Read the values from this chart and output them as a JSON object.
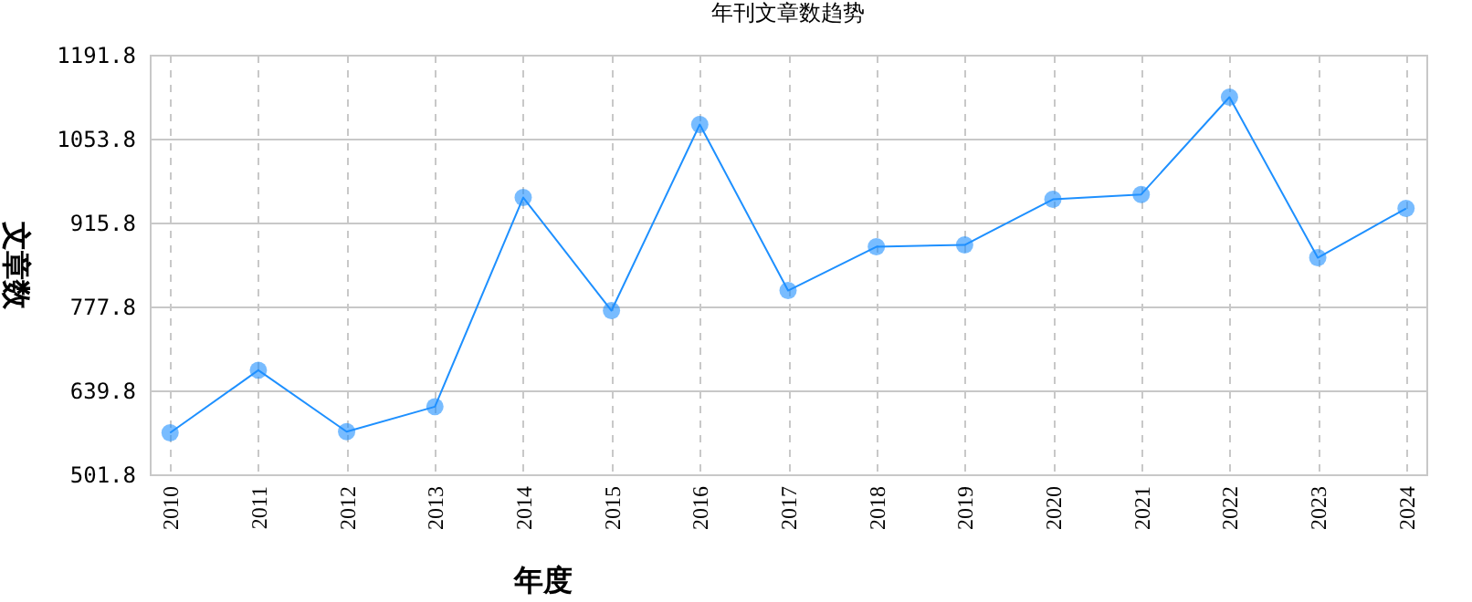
{
  "chart_data": {
    "type": "line",
    "title": "年刊文章数趋势",
    "xlabel": "年度",
    "ylabel": "文章数",
    "categories": [
      "2010",
      "2011",
      "2012",
      "2013",
      "2014",
      "2015",
      "2016",
      "2017",
      "2018",
      "2019",
      "2020",
      "2021",
      "2022",
      "2023",
      "2024"
    ],
    "series": [
      {
        "color": "#1e90ff",
        "values": [
          570,
          673,
          572,
          613,
          957,
          771,
          1077,
          804,
          876,
          879,
          954,
          962,
          1122,
          858,
          939
        ]
      }
    ],
    "ylim": [
      501.8,
      1191.8
    ],
    "yticks": [
      501.8,
      639.8,
      777.8,
      915.8,
      1053.8,
      1191.8
    ],
    "grid": true,
    "marker": "circle",
    "line_style": "solid"
  }
}
